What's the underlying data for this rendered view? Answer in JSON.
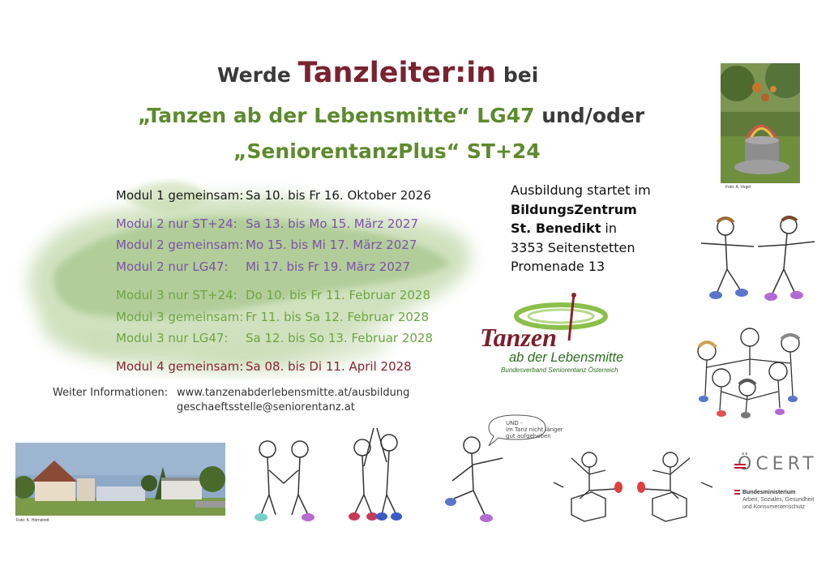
{
  "heading": {
    "line1_pre": "Werde ",
    "line1_big": "Tanzleiter:in",
    "line1_post": " bei",
    "line2_green": "„Tanzen ab der Lebensmitte“  LG47",
    "line2_dark": " und/oder",
    "line3": "„SeniorentanzPlus“ ST+24"
  },
  "modules": [
    {
      "label": "Modul 1 gemeinsam:",
      "dates": "Sa 10.   bis   Fr 16. Oktober 2026",
      "color": "#1a1a1a"
    },
    {
      "label": "Modul 2 nur ST+24:",
      "dates": "Sa 13.   bis   Mo 15. März 2027",
      "color": "#7b52a8"
    },
    {
      "label": "Modul 2 gemeinsam:",
      "dates": "Mo 15. bis  Mi 17.  März 2027",
      "color": "#7b52a8"
    },
    {
      "label": "Modul 2 nur LG47:",
      "dates": "Mi 17.  bis    Fr 19.  März 2027",
      "color": "#7b52a8"
    },
    {
      "label": "Modul 3 nur ST+24:",
      "dates": "Do 10.  bis    Fr  11. Februar 2028",
      "color": "#6ea442"
    },
    {
      "label": "Modul 3 gemeinsam:",
      "dates": "Fr 11.    bis   Sa 12.  Februar 2028",
      "color": "#6ea442"
    },
    {
      "label": "Modul 3 nur LG47:",
      "dates": "Sa 12.   bis   So 13.  Februar 2028",
      "color": "#6ea442"
    },
    {
      "label": "Modul 4 gemeinsam:",
      "dates": "Sa 08.   bis   Di 11.  April 2028",
      "color": "#8a2331"
    }
  ],
  "info": {
    "label": "Weiter Informationen:",
    "url": "www.tanzenabderlebensmitte.at/ausbildung",
    "email": "geschaeftsstelle@seniorentanz.at"
  },
  "address": {
    "line1": "Ausbildung startet im",
    "line2": "BildungsZentrum",
    "line3_bold": "St. Benedikt",
    "line3_rest": " in",
    "line4": "3353 Seitenstetten",
    "line5": "Promenade 13"
  },
  "logo": {
    "word": "Tanzen",
    "sub": "ab der Lebensmitte",
    "org": "Bundesverband Seniorentanz Österreich"
  },
  "credits": {
    "fountain": "Foto: A. Vogel",
    "building": "Foto: K. Hörnstreit"
  },
  "cert": "ÖCERT",
  "ministry": {
    "head": "Bundesministerium",
    "l1": "Arbeit, Soziales, Gesundheit",
    "l2": "und Konsumentenschutz"
  },
  "bubble": {
    "l1": "UND -",
    "l2": "im Tanz nicht länger",
    "l3": "gut aufgehoben"
  },
  "colors": {
    "title_red": "#7a2230",
    "title_green": "#5d8a2e",
    "purple": "#7b52a8",
    "green": "#6ea442",
    "red": "#8a2331"
  }
}
